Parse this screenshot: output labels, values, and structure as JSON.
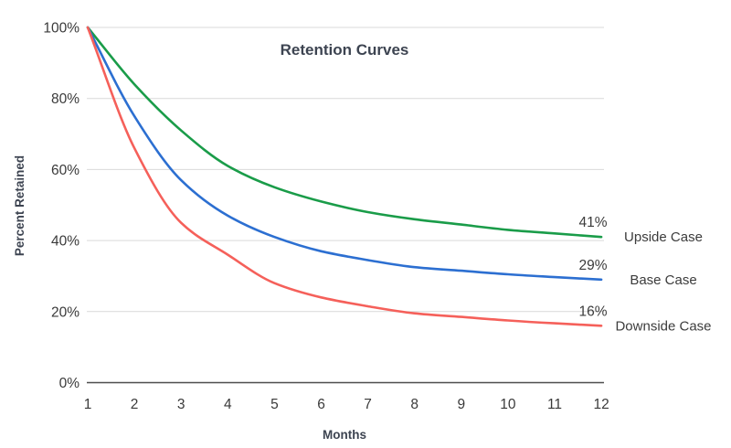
{
  "title": "Retention Curves",
  "x_axis": {
    "label": "Months",
    "tick_labels": [
      "1",
      "2",
      "3",
      "4",
      "5",
      "6",
      "7",
      "8",
      "9",
      "10",
      "11",
      "12"
    ]
  },
  "y_axis": {
    "label": "Percent Retained",
    "tick_labels": [
      "100%",
      "80%",
      "60%",
      "40%",
      "20%",
      "0%"
    ],
    "tick_values": [
      100,
      80,
      60,
      40,
      20,
      0
    ]
  },
  "chart_data": {
    "type": "line",
    "x": [
      1,
      2,
      3,
      4,
      5,
      6,
      7,
      8,
      9,
      10,
      11,
      12
    ],
    "series": [
      {
        "name": "Upside Case",
        "end_label": "41%",
        "color": "#1a9c49",
        "values": [
          100,
          84,
          71,
          61,
          55,
          51,
          48,
          46,
          44.5,
          43,
          42,
          41
        ]
      },
      {
        "name": "Base Case",
        "end_label": "29%",
        "color": "#2c6fd1",
        "values": [
          100,
          75,
          57,
          47,
          41,
          37,
          34.5,
          32.5,
          31.5,
          30.5,
          29.7,
          29
        ]
      },
      {
        "name": "Downside Case",
        "end_label": "16%",
        "color": "#f5605a",
        "values": [
          100,
          66,
          45,
          36,
          28,
          24,
          21.5,
          19.5,
          18.5,
          17.5,
          16.7,
          16
        ]
      }
    ],
    "xlim": [
      1,
      12
    ],
    "ylim": [
      0,
      100
    ],
    "grid": true,
    "legend_position": "right-of-line-ends"
  },
  "colors": {
    "gridline": "#d9d9d9",
    "axis_line": "#4d4d4d",
    "tick_text": "#3a3a3a",
    "heading_text": "#3d4451",
    "annotation_text": "#3c3c3c",
    "background": "#ffffff"
  }
}
